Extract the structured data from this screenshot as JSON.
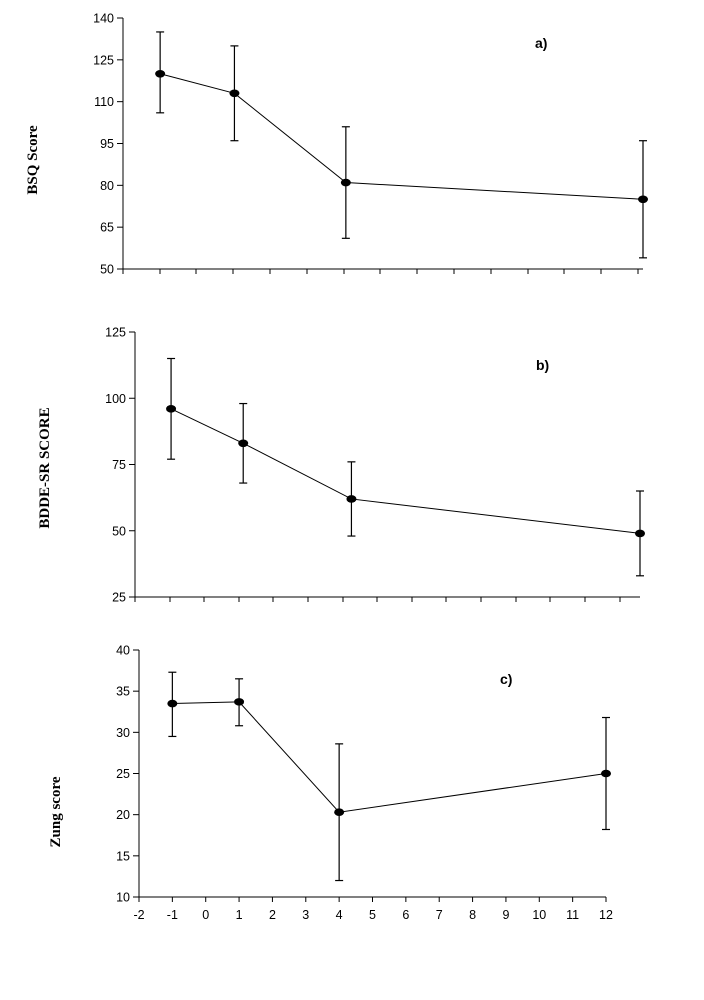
{
  "chart_data": [
    {
      "type": "line",
      "panel_label": "a)",
      "ylabel": "BSQ Score",
      "ylim": [
        50,
        140
      ],
      "yticks": [
        50,
        65,
        80,
        95,
        110,
        125,
        140
      ],
      "xlim": [
        -2,
        12
      ],
      "x": [
        -1,
        1,
        4,
        12
      ],
      "series": [
        {
          "values": [
            120,
            113,
            81,
            75
          ],
          "err_low": [
            106,
            96,
            61,
            54
          ],
          "err_high": [
            135,
            130,
            101,
            96
          ]
        }
      ]
    },
    {
      "type": "line",
      "panel_label": "b)",
      "ylabel": "BDDE-SR SCORE",
      "ylim": [
        25,
        125
      ],
      "yticks": [
        25,
        50,
        75,
        100,
        125
      ],
      "xlim": [
        -2,
        12
      ],
      "x": [
        -1,
        1,
        4,
        12
      ],
      "series": [
        {
          "values": [
            96,
            83,
            62,
            49
          ],
          "err_low": [
            77,
            68,
            48,
            33
          ],
          "err_high": [
            115,
            98,
            76,
            65
          ]
        }
      ]
    },
    {
      "type": "line",
      "panel_label": "c)",
      "ylabel": "Zung score",
      "ylim": [
        10,
        40
      ],
      "yticks": [
        10,
        15,
        20,
        25,
        30,
        35,
        40
      ],
      "xlim": [
        -2,
        12
      ],
      "xticks": [
        -2,
        -1,
        0,
        1,
        2,
        3,
        4,
        5,
        6,
        7,
        8,
        9,
        10,
        11,
        12
      ],
      "x": [
        -1,
        1,
        4,
        12
      ],
      "series": [
        {
          "values": [
            33.5,
            33.7,
            20.3,
            25
          ],
          "err_low": [
            29.5,
            30.8,
            12,
            18.2
          ],
          "err_high": [
            37.3,
            36.5,
            28.6,
            31.8
          ]
        }
      ]
    }
  ]
}
